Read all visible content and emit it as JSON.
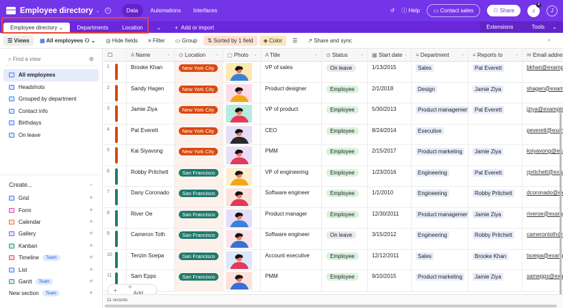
{
  "app": {
    "title": "Employee directory",
    "nav": [
      "Data",
      "Automations",
      "Interfaces"
    ],
    "help": "Help",
    "contact": "Contact sales",
    "share": "Share",
    "notifications": "4",
    "avatar": "J"
  },
  "tabs": {
    "items": [
      "Employee directory",
      "Departments",
      "Location"
    ],
    "add": "Add or import",
    "extensions": "Extensions",
    "tools": "Tools"
  },
  "toolbar": {
    "views": "Views",
    "view": "All employees",
    "hide": "Hide fields",
    "filter": "Filter",
    "group": "Group",
    "sorted": "Sorted by 1 field",
    "color": "Color",
    "share": "Share and sync"
  },
  "sidebar": {
    "find_placeholder": "Find a view",
    "views": [
      "All employees",
      "Headshots",
      "Grouped by department",
      "Contact info",
      "Birthdays",
      "On leave"
    ],
    "create_label": "Create...",
    "create": [
      {
        "label": "Grid",
        "color": "#4a7be8",
        "team": false
      },
      {
        "label": "Form",
        "color": "#d946c0",
        "team": false
      },
      {
        "label": "Calendar",
        "color": "#e8743a",
        "team": false
      },
      {
        "label": "Gallery",
        "color": "#8b5cf6",
        "team": false
      },
      {
        "label": "Kanban",
        "color": "#18a058",
        "team": false
      },
      {
        "label": "Timeline",
        "color": "#e8465a",
        "team": true
      },
      {
        "label": "List",
        "color": "#4a7be8",
        "team": false
      },
      {
        "label": "Gantt",
        "color": "#1f9c8a",
        "team": true
      },
      {
        "label": "New section",
        "color": "",
        "team": true
      }
    ],
    "team_label": "Team"
  },
  "columns": [
    "Name",
    "Location",
    "Photo",
    "Title",
    "Status",
    "Start date",
    "Department",
    "Reports to",
    "Email address"
  ],
  "colors": {
    "nyc": "#d9480f",
    "sf": "#1f7a6c",
    "employee_bg": "#d9f2dd",
    "leave_bg": "#e8eaf0"
  },
  "rows": [
    {
      "n": "1",
      "name": "Brooke Khan",
      "loc": "New York City",
      "title": "VP of sales",
      "status": "On leave",
      "start": "1/13/2015",
      "dept": "Sales",
      "reports": "Pat Everett",
      "email": "bkhan@example.com",
      "photo": "#fde7b3"
    },
    {
      "n": "2",
      "name": "Sandy Hagen",
      "loc": "New York City",
      "title": "Product designer",
      "status": "Employee",
      "start": "2/1/2018",
      "dept": "Design",
      "reports": "Jamie Ziya",
      "email": "shagen@example.com",
      "photo": "#fcdce6"
    },
    {
      "n": "3",
      "name": "Jamie Ziya",
      "loc": "New York City",
      "title": "VP of product",
      "status": "Employee",
      "start": "5/30/2013",
      "dept": "Product management",
      "reports": "Pat Everett",
      "email": "jziya@example.com",
      "photo": "#b5ecdf"
    },
    {
      "n": "4",
      "name": "Pat Everett",
      "loc": "New York City",
      "title": "CEO",
      "status": "Employee",
      "start": "8/24/2014",
      "dept": "Executive",
      "reports": "",
      "email": "peverett@example.com",
      "photo": "#e6ddf7"
    },
    {
      "n": "5",
      "name": "Kai Siyavong",
      "loc": "New York City",
      "title": "PMM",
      "status": "Employee",
      "start": "2/15/2017",
      "dept": "Product marketing",
      "reports": "Jamie Ziya",
      "email": "ksiyavong@example.com",
      "photo": "#e9def6"
    },
    {
      "n": "6",
      "name": "Robby Pritchett",
      "loc": "San Francisco",
      "title": "VP of engineering",
      "status": "Employee",
      "start": "1/23/2016",
      "dept": "Engineering",
      "reports": "Pat Everett",
      "email": "rpritchett@example.com",
      "photo": "#fdeed0"
    },
    {
      "n": "7",
      "name": "Dany Coronado",
      "loc": "San Francisco",
      "title": "Software engineer",
      "status": "Employee",
      "start": "1/1/2010",
      "dept": "Engineering",
      "reports": "Robby Pritchett",
      "email": "dcoronado@example.com",
      "photo": "#fde2dc"
    },
    {
      "n": "8",
      "name": "River Oe",
      "loc": "San Francisco",
      "title": "Product manager",
      "status": "Employee",
      "start": "12/30/2011",
      "dept": "Product management",
      "reports": "Jamie Ziya",
      "email": "riveroe@example.com",
      "photo": "#e4def8"
    },
    {
      "n": "9",
      "name": "Cameron Toth",
      "loc": "San Francisco",
      "title": "Software engineer",
      "status": "On leave",
      "start": "3/15/2012",
      "dept": "Engineering",
      "reports": "Robby Pritchett",
      "email": "camerontoth@example.com",
      "photo": "#fbe3e9"
    },
    {
      "n": "10",
      "name": "Tenzin Soepa",
      "loc": "San Francisco",
      "title": "Account executive",
      "status": "Employee",
      "start": "12/12/2011",
      "dept": "Sales",
      "reports": "Brooke Khan",
      "email": "tsoepa@example.com",
      "photo": "#dde7fb"
    },
    {
      "n": "11",
      "name": "Sam Epps",
      "loc": "San Francisco",
      "title": "PMM",
      "status": "Employee",
      "start": "9/10/2015",
      "dept": "Product marketing",
      "reports": "Jamie Ziya",
      "email": "samepps@example.com",
      "photo": "#fde2dc"
    }
  ],
  "footer": {
    "records": "11 records",
    "add": "Add..."
  }
}
